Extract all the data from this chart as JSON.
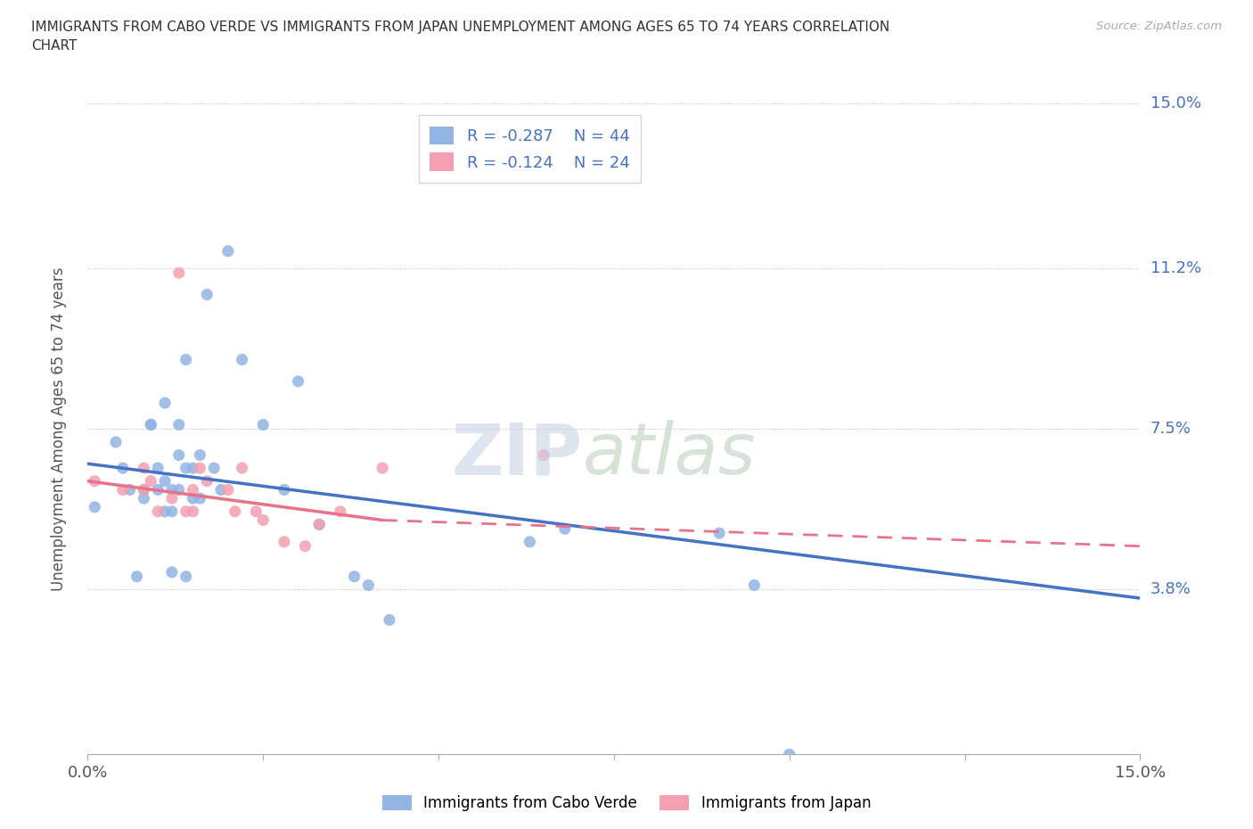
{
  "title": "IMMIGRANTS FROM CABO VERDE VS IMMIGRANTS FROM JAPAN UNEMPLOYMENT AMONG AGES 65 TO 74 YEARS CORRELATION\nCHART",
  "source": "Source: ZipAtlas.com",
  "ylabel": "Unemployment Among Ages 65 to 74 years",
  "xlim": [
    0.0,
    0.15
  ],
  "ylim": [
    0.0,
    0.15
  ],
  "xticks": [
    0.0,
    0.025,
    0.05,
    0.075,
    0.1,
    0.125,
    0.15
  ],
  "xticklabels": [
    "0.0%",
    "",
    "",
    "",
    "",
    "",
    "15.0%"
  ],
  "ytick_labels": [
    "3.8%",
    "7.5%",
    "11.2%",
    "15.0%"
  ],
  "ytick_values": [
    0.038,
    0.075,
    0.112,
    0.15
  ],
  "cabo_verde_color": "#92b4e3",
  "japan_color": "#f4a0b0",
  "cabo_verde_line_color": "#4472c4",
  "japan_line_color": "#e8728a",
  "legend_r_cabo": "R = -0.287",
  "legend_n_cabo": "N = 44",
  "legend_r_japan": "R = -0.124",
  "legend_n_japan": "N = 24",
  "cabo_verde_scatter_x": [
    0.001,
    0.004,
    0.005,
    0.006,
    0.007,
    0.008,
    0.008,
    0.009,
    0.009,
    0.01,
    0.01,
    0.011,
    0.011,
    0.011,
    0.012,
    0.012,
    0.012,
    0.013,
    0.013,
    0.013,
    0.014,
    0.014,
    0.014,
    0.015,
    0.015,
    0.016,
    0.016,
    0.017,
    0.018,
    0.019,
    0.02,
    0.022,
    0.025,
    0.028,
    0.03,
    0.033,
    0.038,
    0.04,
    0.043,
    0.063,
    0.068,
    0.09,
    0.095,
    0.1
  ],
  "cabo_verde_scatter_y": [
    0.057,
    0.072,
    0.066,
    0.061,
    0.041,
    0.061,
    0.059,
    0.076,
    0.076,
    0.066,
    0.061,
    0.081,
    0.063,
    0.056,
    0.061,
    0.056,
    0.042,
    0.076,
    0.069,
    0.061,
    0.066,
    0.041,
    0.091,
    0.066,
    0.059,
    0.069,
    0.059,
    0.106,
    0.066,
    0.061,
    0.116,
    0.091,
    0.076,
    0.061,
    0.086,
    0.053,
    0.041,
    0.039,
    0.031,
    0.049,
    0.052,
    0.051,
    0.039,
    0.0
  ],
  "japan_scatter_x": [
    0.001,
    0.005,
    0.008,
    0.008,
    0.009,
    0.01,
    0.012,
    0.013,
    0.014,
    0.015,
    0.015,
    0.016,
    0.017,
    0.02,
    0.021,
    0.022,
    0.024,
    0.025,
    0.028,
    0.031,
    0.033,
    0.036,
    0.042,
    0.065
  ],
  "japan_scatter_y": [
    0.063,
    0.061,
    0.066,
    0.061,
    0.063,
    0.056,
    0.059,
    0.111,
    0.056,
    0.061,
    0.056,
    0.066,
    0.063,
    0.061,
    0.056,
    0.066,
    0.056,
    0.054,
    0.049,
    0.048,
    0.053,
    0.056,
    0.066,
    0.069
  ],
  "cabo_line_x0": 0.0,
  "cabo_line_x1": 0.15,
  "cabo_line_y0": 0.067,
  "cabo_line_y1": 0.036,
  "japan_line_x0": 0.0,
  "japan_line_x1": 0.042,
  "japan_line_x1_dash": 0.15,
  "japan_line_y0": 0.063,
  "japan_line_y1": 0.054,
  "japan_line_y1_dash": 0.048
}
